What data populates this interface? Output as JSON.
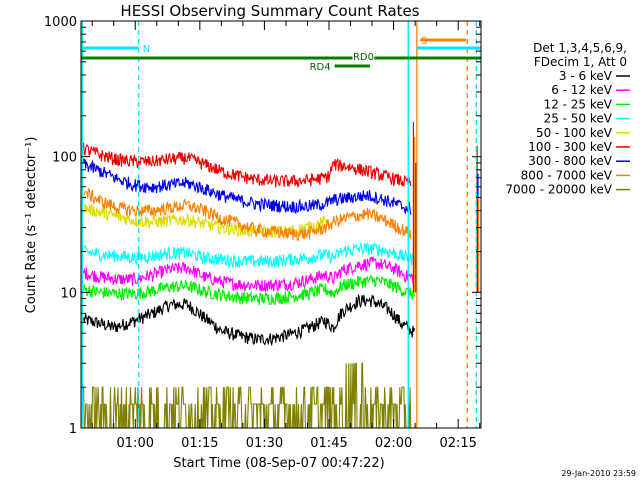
{
  "chart_data": {
    "type": "line",
    "title": "HESSI Observing Summary Count Rates",
    "xlabel": "Start Time (08-Sep-07 00:47:22)",
    "ylabel": "Count Rate (s⁻¹ detector⁻¹)",
    "ylim": [
      1,
      1000
    ],
    "yscale": "log",
    "xlim_minutes": [
      47.4,
      140.3
    ],
    "x_ticks": [
      {
        "t": 60,
        "label": "01:00"
      },
      {
        "t": 75,
        "label": "01:15"
      },
      {
        "t": 90,
        "label": "01:30"
      },
      {
        "t": 105,
        "label": "01:45"
      },
      {
        "t": 120,
        "label": "02:00"
      },
      {
        "t": 135,
        "label": "02:15"
      }
    ],
    "y_ticks": [
      {
        "v": 1,
        "label": "1"
      },
      {
        "v": 10,
        "label": "10"
      },
      {
        "v": 100,
        "label": "100"
      },
      {
        "v": 1000,
        "label": "1000"
      }
    ],
    "legend": {
      "position": "right",
      "header": [
        "Det 1,3,4,5,6,9,",
        "FDecim 1, Att 0"
      ]
    },
    "series": [
      {
        "name": "3 - 6 keV",
        "color": "#000000",
        "x": [
          48,
          51,
          55,
          60,
          64,
          68,
          72,
          76,
          80,
          84,
          88,
          92,
          96,
          100,
          104,
          106,
          108,
          112,
          115,
          119,
          122,
          125
        ],
        "y": [
          6.3,
          6.0,
          5.5,
          6.2,
          7.0,
          8.1,
          8.2,
          6.5,
          5.2,
          4.8,
          4.5,
          4.6,
          4.9,
          5.4,
          6.2,
          5.5,
          7.2,
          8.7,
          8.7,
          7.4,
          5.8,
          5.0
        ]
      },
      {
        "name": "6 - 12 keV",
        "color": "#ff00ff",
        "x": [
          48,
          52,
          56,
          60,
          64,
          68,
          72,
          76,
          80,
          84,
          88,
          92,
          96,
          100,
          104,
          106,
          108,
          112,
          116,
          120,
          123,
          125
        ],
        "y": [
          14.0,
          13.0,
          12.5,
          12.5,
          13.5,
          14.8,
          15.2,
          13.0,
          12.0,
          11.5,
          11.3,
          11.4,
          11.6,
          12.3,
          13.5,
          12.5,
          14.5,
          16.0,
          16.5,
          15.0,
          13.2,
          12.8
        ]
      },
      {
        "name": "12 - 25 keV",
        "color": "#00ee00",
        "x": [
          48,
          52,
          56,
          60,
          64,
          68,
          72,
          76,
          80,
          84,
          88,
          92,
          96,
          100,
          104,
          106,
          108,
          112,
          116,
          120,
          123,
          125
        ],
        "y": [
          10.5,
          10.0,
          9.8,
          9.8,
          10.3,
          11.0,
          11.2,
          10.2,
          9.6,
          9.2,
          9.0,
          9.1,
          9.3,
          9.8,
          10.6,
          9.8,
          11.2,
          12.0,
          12.3,
          11.2,
          10.0,
          9.6
        ]
      },
      {
        "name": "25 - 50 keV",
        "color": "#00ffff",
        "x": [
          48,
          52,
          56,
          60,
          64,
          68,
          72,
          76,
          80,
          84,
          88,
          92,
          96,
          100,
          104,
          106,
          108,
          112,
          116,
          120,
          123,
          125
        ],
        "y": [
          20.0,
          19.0,
          18.5,
          18.0,
          18.5,
          19.5,
          19.5,
          18.0,
          17.5,
          17.0,
          17.0,
          17.0,
          17.5,
          18.0,
          19.0,
          18.0,
          20.0,
          21.0,
          21.0,
          19.5,
          18.0,
          17.5
        ]
      },
      {
        "name": "50 - 100 keV",
        "color": "#dddd00",
        "x": [
          48,
          52,
          56,
          60,
          64,
          68,
          72,
          76,
          80,
          84,
          88,
          92,
          96,
          100,
          104,
          105
        ],
        "y": [
          42.0,
          39.0,
          36.0,
          34.0,
          33.0,
          34.0,
          34.5,
          32.0,
          30.0,
          29.0,
          28.0,
          28.0,
          28.5,
          30.0,
          33.0,
          34.0
        ]
      },
      {
        "name": "100 - 300 keV",
        "color": "#ee0000",
        "x": [
          48,
          52,
          56,
          60,
          64,
          68,
          72,
          76,
          80,
          84,
          88,
          92,
          96,
          100,
          104,
          105,
          106,
          110,
          114,
          118,
          122,
          124
        ],
        "y": [
          115,
          103,
          95,
          92,
          92,
          96,
          98,
          88,
          78,
          72,
          68,
          66,
          66,
          67,
          70,
          72,
          88,
          84,
          78,
          72,
          66,
          64
        ]
      },
      {
        "name": "300 - 800 keV",
        "color": "#0000ee",
        "x": [
          48,
          52,
          56,
          60,
          64,
          68,
          72,
          76,
          80,
          84,
          88,
          92,
          96,
          100,
          104,
          105,
          106,
          110,
          114,
          118,
          122,
          124
        ],
        "y": [
          88,
          78,
          68,
          62,
          60,
          62,
          64,
          58,
          52,
          48,
          45,
          44,
          43,
          43,
          45,
          46,
          48,
          50,
          52,
          48,
          43,
          41
        ]
      },
      {
        "name": "800 - 7000 keV",
        "color": "#ff8000",
        "x": [
          48,
          52,
          56,
          60,
          64,
          68,
          72,
          76,
          80,
          84,
          88,
          92,
          96,
          100,
          104,
          106,
          110,
          114,
          118,
          122,
          124
        ],
        "y": [
          55,
          47,
          42,
          40,
          40,
          42,
          44,
          40,
          35,
          32,
          29,
          28,
          27,
          27,
          30,
          33,
          36,
          38,
          34,
          29,
          27
        ]
      },
      {
        "name": "7000 - 20000 keV",
        "color": "#808000",
        "x": [
          48,
          49,
          52,
          56,
          60,
          62,
          64,
          68,
          72,
          76,
          78,
          100,
          102,
          104,
          108,
          110,
          112,
          114,
          116,
          118,
          120,
          122,
          124
        ],
        "y": [
          2.0,
          1.5,
          1.0,
          1.0,
          1.5,
          2.0,
          1.5,
          2.0,
          2.0,
          1.5,
          1.0,
          1.0,
          1.5,
          2.0,
          2.0,
          3.0,
          3.0,
          2.0,
          2.0,
          1.5,
          1.0,
          1.0,
          1.0
        ]
      }
    ],
    "annotations": [
      {
        "label": "N",
        "t_start": 47.4,
        "t_end": 60.8
      },
      {
        "label": "RD0",
        "t_start": 47.4,
        "t_end": 140.3
      },
      {
        "label": "RD4",
        "t_start": 106.3,
        "t_end": 114.5
      },
      {
        "label": "S",
        "t_start": 125.4,
        "t_end": 140.3
      }
    ],
    "footer_date": "29-Jan-2010 23:59"
  }
}
